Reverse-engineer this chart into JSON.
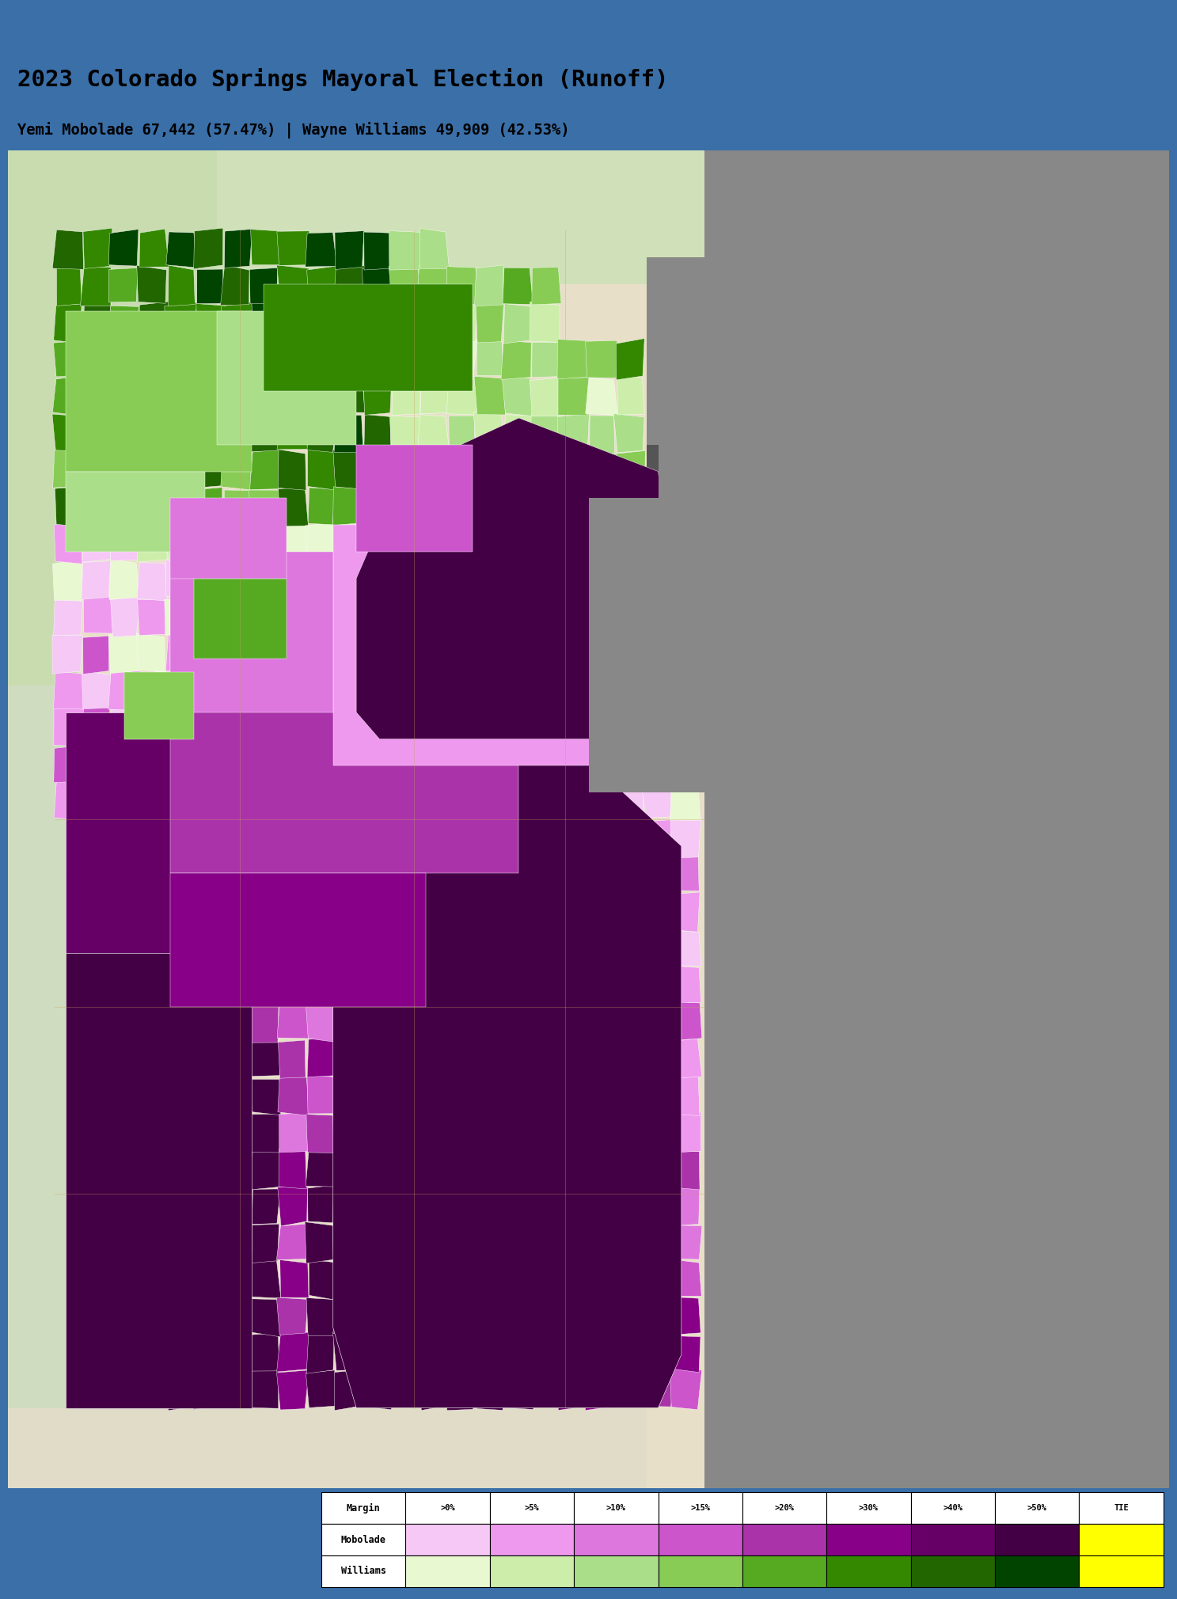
{
  "title_line1": "2023 Colorado Springs Mayoral Election (Runoff)",
  "title_line2": "Yemi Mobolade 67,442 (57.47%) | Wayne Williams 49,909 (42.53%)",
  "header_color": "#3a6fa8",
  "title_bg_color": "#ffffff",
  "title_color": "#000000",
  "legend_labels": [
    ">0%",
    ">5%",
    ">10%",
    ">15%",
    ">20%",
    ">30%",
    ">40%",
    ">50%",
    "TIE"
  ],
  "mobolade_colors": [
    "#f5c8f5",
    "#ee99ee",
    "#dd77dd",
    "#cc55cc",
    "#aa33aa",
    "#880088",
    "#660066",
    "#440044",
    "#ffff00"
  ],
  "williams_colors": [
    "#e8f8d0",
    "#cceeaa",
    "#aade88",
    "#88cc55",
    "#55aa22",
    "#338800",
    "#226600",
    "#004400",
    "#ffff00"
  ],
  "gray_color": "#888888",
  "footer_color": "#3a6fa8",
  "fig_width": 14.67,
  "fig_height": 20.0,
  "dpi": 100
}
